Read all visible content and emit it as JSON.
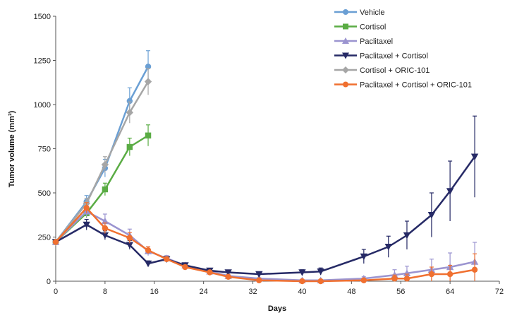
{
  "chart_data": {
    "type": "line",
    "xlabel": "Days",
    "ylabel": "Tumor volume (mm³)",
    "xlim": [
      0,
      72
    ],
    "ylim": [
      0,
      1500
    ],
    "xticks": [
      0,
      8,
      16,
      24,
      32,
      40,
      48,
      56,
      64,
      72
    ],
    "yticks": [
      0,
      250,
      500,
      750,
      1000,
      1250,
      1500
    ],
    "xtick_labels": [
      "0",
      "8",
      "16",
      "24",
      "32",
      "40",
      "48",
      "56",
      "64",
      "72"
    ],
    "ytick_labels": [
      "0",
      "250",
      "500",
      "750",
      "1000",
      "1250",
      "1500"
    ],
    "grid": false,
    "legend_position": "top-right",
    "series": [
      {
        "name": "Vehicle",
        "color": "#6a9fd4",
        "marker": "circle",
        "x": [
          0,
          5,
          8,
          12,
          15
        ],
        "y": [
          222,
          450,
          640,
          1020,
          1215
        ],
        "err": [
          10,
          35,
          50,
          75,
          90
        ]
      },
      {
        "name": "Cortisol",
        "color": "#5aac44",
        "marker": "square",
        "x": [
          0,
          5,
          8,
          12,
          15
        ],
        "y": [
          222,
          385,
          520,
          760,
          825
        ],
        "err": [
          10,
          25,
          35,
          50,
          60
        ]
      },
      {
        "name": "Paclitaxel",
        "color": "#9b94d0",
        "marker": "triangle-up",
        "x": [
          0,
          5,
          8,
          12,
          15,
          18,
          21,
          25,
          28,
          33,
          40,
          43,
          50,
          55,
          57,
          61,
          64,
          68
        ],
        "y": [
          222,
          395,
          340,
          260,
          170,
          130,
          90,
          55,
          30,
          15,
          5,
          5,
          15,
          35,
          45,
          65,
          80,
          110
        ],
        "err": [
          10,
          30,
          40,
          35,
          25,
          15,
          10,
          10,
          8,
          5,
          5,
          5,
          10,
          30,
          40,
          60,
          80,
          110
        ]
      },
      {
        "name": "Paclitaxel + Cortisol",
        "color": "#262a66",
        "marker": "triangle-down",
        "x": [
          0,
          5,
          8,
          12,
          15,
          18,
          21,
          25,
          28,
          33,
          40,
          43,
          50,
          54,
          57,
          61,
          64,
          68
        ],
        "y": [
          222,
          320,
          260,
          205,
          100,
          125,
          90,
          60,
          50,
          40,
          50,
          55,
          140,
          195,
          260,
          375,
          510,
          705
        ],
        "err": [
          10,
          30,
          25,
          25,
          15,
          15,
          12,
          10,
          10,
          10,
          15,
          20,
          40,
          60,
          80,
          125,
          170,
          230
        ]
      },
      {
        "name": "Cortisol + ORIC-101",
        "color": "#a6a6a6",
        "marker": "diamond",
        "x": [
          0,
          5,
          8,
          12,
          15
        ],
        "y": [
          222,
          440,
          660,
          955,
          1130
        ],
        "err": [
          10,
          30,
          45,
          60,
          75
        ]
      },
      {
        "name": "Paclitaxel + Cortisol + ORIC-101",
        "color": "#f07030",
        "marker": "circle",
        "x": [
          0,
          5,
          8,
          12,
          15,
          18,
          21,
          25,
          28,
          33,
          40,
          43,
          50,
          55,
          57,
          61,
          64,
          68
        ],
        "y": [
          222,
          415,
          300,
          245,
          175,
          125,
          80,
          50,
          25,
          5,
          0,
          0,
          5,
          15,
          15,
          40,
          40,
          65
        ],
        "err": [
          10,
          30,
          30,
          30,
          20,
          12,
          10,
          8,
          6,
          5,
          5,
          5,
          8,
          20,
          25,
          40,
          50,
          90
        ]
      }
    ]
  }
}
